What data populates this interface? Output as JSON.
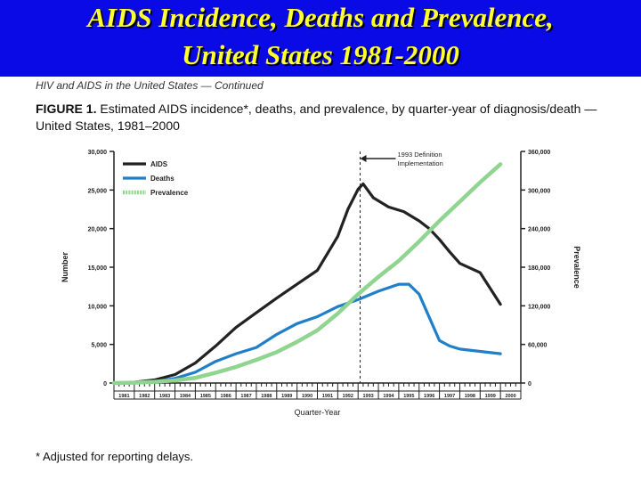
{
  "banner": {
    "title_line1": "AIDS Incidence, Deaths and Prevalence,",
    "title_line2": "United States 1981-2000"
  },
  "subhead": "HIV and AIDS in the United States — Continued",
  "figure_caption": {
    "label": "FIGURE 1.",
    "text": "Estimated AIDS incidence*, deaths, and prevalence, by quarter-year of diagnosis/death — United States, 1981–2000"
  },
  "footnote": "* Adjusted for reporting delays.",
  "colors": {
    "banner_bg": "#0a0ae6",
    "banner_text": "#ffff33",
    "aids": "#222222",
    "deaths": "#1f7fc8",
    "prevalence": "#8fd48f"
  },
  "chart_data": {
    "type": "line",
    "xlabel": "Quarter-Year",
    "ylabel": "Number",
    "y2label": "Prevalence",
    "ylim": [
      0,
      30000
    ],
    "y2lim": [
      0,
      360000
    ],
    "yticks": [
      "0",
      "5,000",
      "10,000",
      "15,000",
      "20,000",
      "25,000",
      "30,000"
    ],
    "y2ticks": [
      "0",
      "60,000",
      "120,000",
      "180,000",
      "240,000",
      "300,000",
      "360,000"
    ],
    "categories": [
      "1981",
      "1982",
      "1983",
      "1984",
      "1985",
      "1986",
      "1987",
      "1988",
      "1989",
      "1990",
      "1991",
      "1992",
      "1993",
      "1994",
      "1995",
      "1996",
      "1997",
      "1998",
      "1999",
      "2000"
    ],
    "annotation": "1993 Definition Implementation",
    "annotation_year": 1993,
    "legend_position": "top-left",
    "grid": false,
    "series": [
      {
        "name": "AIDS",
        "axis": "left",
        "x": [
          1981,
          1982,
          1983,
          1984,
          1985,
          1986,
          1987,
          1988,
          1989,
          1990,
          1991,
          1992,
          1992.5,
          1993,
          1993.25,
          1993.75,
          1994.5,
          1995.25,
          1996,
          1996.5,
          1997,
          1997.5,
          1998,
          1999,
          2000
        ],
        "y": [
          0,
          100,
          400,
          1100,
          2600,
          4800,
          7200,
          9100,
          11000,
          12800,
          14600,
          19000,
          22500,
          25100,
          25800,
          24000,
          22800,
          22200,
          21000,
          20000,
          18600,
          17000,
          15500,
          14300,
          10200
        ]
      },
      {
        "name": "Deaths",
        "axis": "left",
        "x": [
          1981,
          1982,
          1983,
          1984,
          1985,
          1986,
          1987,
          1988,
          1989,
          1990,
          1991,
          1992,
          1993,
          1994,
          1995,
          1995.5,
          1996,
          1996.5,
          1997,
          1997.5,
          1998,
          1999,
          2000
        ],
        "y": [
          0,
          50,
          200,
          600,
          1400,
          2800,
          3800,
          4600,
          6300,
          7700,
          8600,
          9900,
          10800,
          11900,
          12800,
          12800,
          11500,
          8500,
          5500,
          4800,
          4400,
          4100,
          3800
        ]
      },
      {
        "name": "Prevalence",
        "axis": "right",
        "x": [
          1981,
          1982,
          1983,
          1984,
          1985,
          1986,
          1987,
          1988,
          1989,
          1990,
          1991,
          1992,
          1993,
          1994,
          1995,
          1996,
          1997,
          1998,
          1999,
          2000
        ],
        "y": [
          0,
          500,
          2000,
          4000,
          8000,
          16000,
          25000,
          36000,
          48000,
          64000,
          82000,
          108000,
          138000,
          165000,
          190000,
          220000,
          252000,
          282000,
          312000,
          340000
        ]
      }
    ]
  }
}
